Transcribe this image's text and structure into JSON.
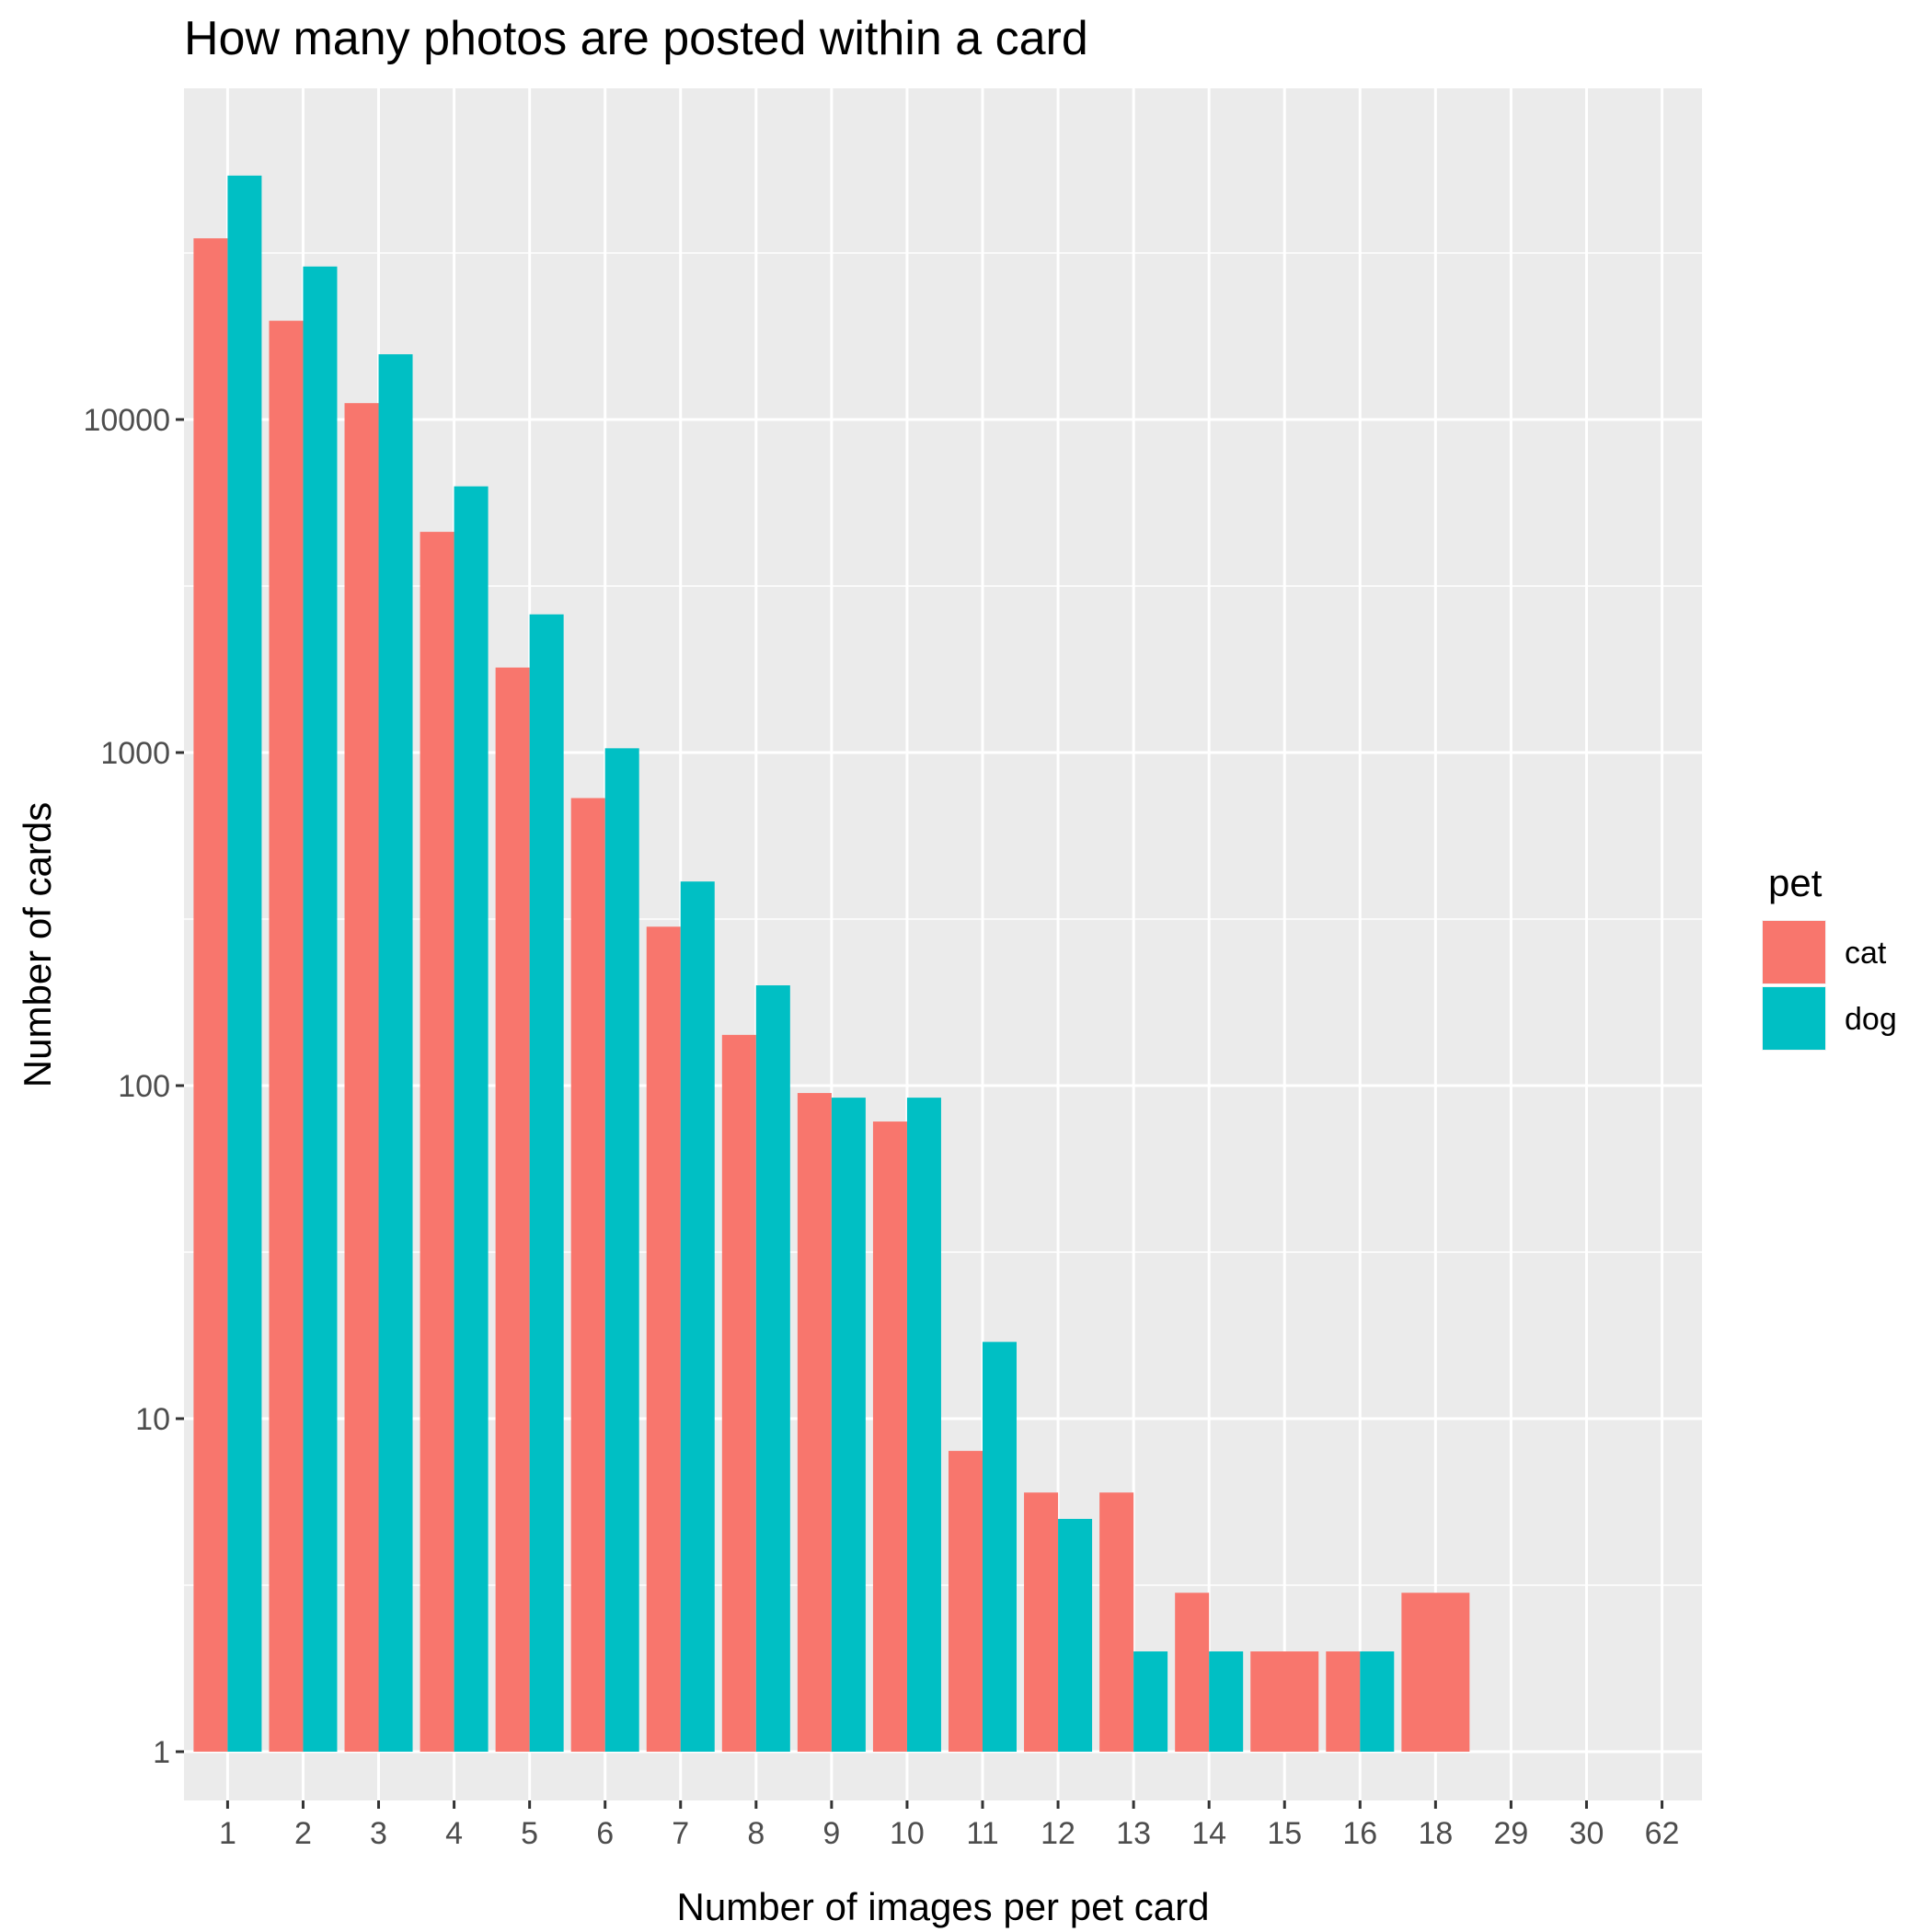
{
  "chart_data": {
    "type": "bar",
    "title": "How many photos are posted within a card",
    "xlabel": "Number of images per pet card",
    "ylabel": "Number of cards",
    "y_scale": "log10",
    "ylim": [
      0.75,
      90000
    ],
    "y_ticks": [
      1,
      10,
      100,
      1000,
      10000
    ],
    "y_tick_labels": [
      "1",
      "10",
      "100",
      "1000",
      "10000"
    ],
    "categories": [
      "1",
      "2",
      "3",
      "4",
      "5",
      "6",
      "7",
      "8",
      "9",
      "10",
      "11",
      "12",
      "13",
      "14",
      "15",
      "16",
      "18",
      "29",
      "30",
      "62"
    ],
    "series": [
      {
        "name": "cat",
        "color": "#F8766D",
        "values": [
          35000,
          19800,
          11200,
          4600,
          1800,
          730,
          300,
          142,
          95,
          78,
          8,
          6,
          6,
          3,
          2,
          2,
          3,
          1,
          1,
          1
        ]
      },
      {
        "name": "dog",
        "color": "#00BFC4",
        "values": [
          54000,
          28800,
          15700,
          6300,
          2600,
          1030,
          410,
          200,
          92,
          92,
          17,
          5,
          2,
          2,
          null,
          2,
          null,
          null,
          null,
          null
        ]
      }
    ],
    "legend": {
      "title": "pet",
      "position": "right"
    },
    "grid": true,
    "panel_background": "#EBEBEB",
    "grid_color": "#FFFFFF"
  }
}
